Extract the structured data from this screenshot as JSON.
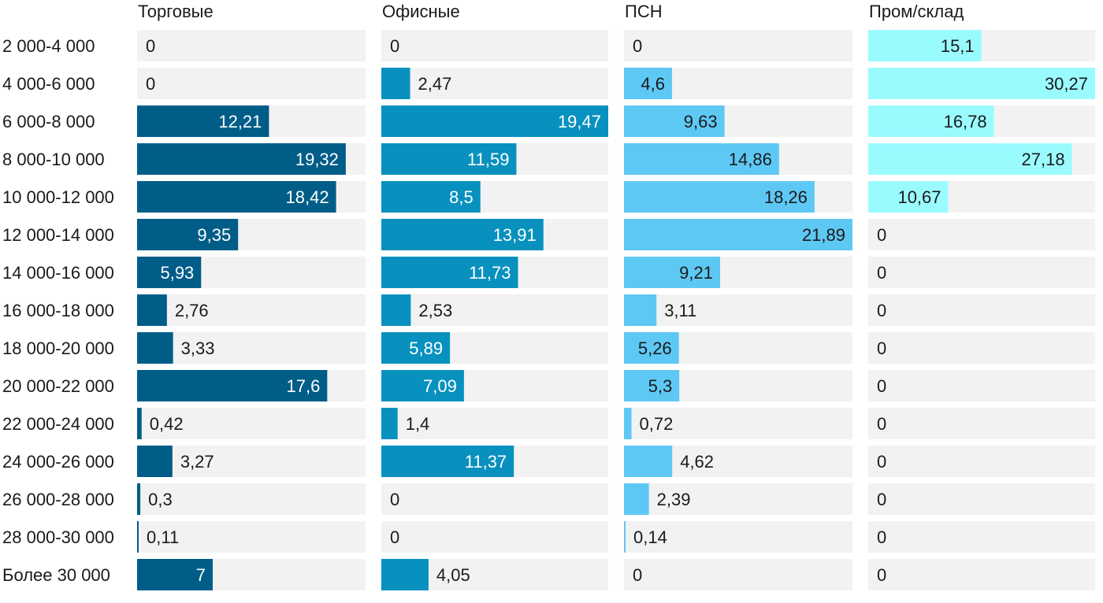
{
  "chart_data": {
    "type": "bar",
    "orientation": "horizontal",
    "layout": "small-multiples",
    "categories": [
      "2 000-4 000",
      "4 000-6 000",
      "6 000-8 000",
      "8 000-10 000",
      "10 000-12 000",
      "12 000-14 000",
      "14 000-16 000",
      "16 000-18 000",
      "18 000-20 000",
      "20 000-22 000",
      "22 000-24 000",
      "24 000-26 000",
      "26 000-28 000",
      "28 000-30 000",
      "Более 30 000"
    ],
    "series": [
      {
        "name": "Торговые",
        "color": "#005d88",
        "values": [
          0,
          0,
          12.21,
          19.32,
          18.42,
          9.35,
          5.93,
          2.76,
          3.33,
          17.6,
          0.42,
          3.27,
          0.3,
          0.11,
          7
        ],
        "labels": [
          "0",
          "0",
          "12,21",
          "19,32",
          "18,42",
          "9,35",
          "5,93",
          "2,76",
          "3,33",
          "17,6",
          "0,42",
          "3,27",
          "0,3",
          "0,11",
          "7"
        ]
      },
      {
        "name": "Офисные",
        "color": "#0891be",
        "values": [
          0,
          2.47,
          19.47,
          11.59,
          8.5,
          13.91,
          11.73,
          2.53,
          5.89,
          7.09,
          1.4,
          11.37,
          0,
          0,
          4.05
        ],
        "labels": [
          "0",
          "2,47",
          "19,47",
          "11,59",
          "8,5",
          "13,91",
          "11,73",
          "2,53",
          "5,89",
          "7,09",
          "1,4",
          "11,37",
          "0",
          "0",
          "4,05"
        ]
      },
      {
        "name": "ПСН",
        "color": "#5ec8f4",
        "values": [
          0,
          4.6,
          9.63,
          14.86,
          18.26,
          21.89,
          9.21,
          3.11,
          5.26,
          5.3,
          0.72,
          4.62,
          2.39,
          0.14,
          0
        ],
        "labels": [
          "0",
          "4,6",
          "9,63",
          "14,86",
          "18,26",
          "21,89",
          "9,21",
          "3,11",
          "5,26",
          "5,3",
          "0,72",
          "4,62",
          "2,39",
          "0,14",
          "0"
        ]
      },
      {
        "name": "Пром/склад",
        "color": "#9afbff",
        "values": [
          15.1,
          30.27,
          16.78,
          27.18,
          10.67,
          0,
          0,
          0,
          0,
          0,
          0,
          0,
          0,
          0,
          0
        ],
        "labels": [
          "15,1",
          "30,27",
          "16,78",
          "27,18",
          "10,67",
          "0",
          "0",
          "0",
          "0",
          "0",
          "0",
          "0",
          "0",
          "0",
          "0"
        ]
      }
    ],
    "background_bar_color": "#f2f2f2",
    "label_color_dark": "#1a1a1a",
    "label_color_light": "#ffffff"
  }
}
